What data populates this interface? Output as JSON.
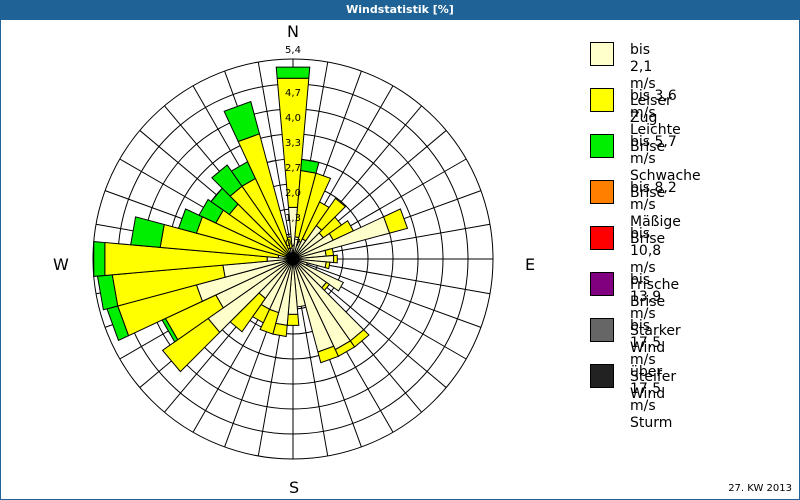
{
  "header": {
    "title": "Windstatistik [%]"
  },
  "compass": {
    "n": "N",
    "e": "E",
    "s": "S",
    "w": "W"
  },
  "footer": {
    "period": "27. KW 2013"
  },
  "legend": [
    {
      "range": "bis 2,1 m/s",
      "name": "Leiser Zug",
      "color": "#ffffcc"
    },
    {
      "range": "bis 3,6 m/s",
      "name": "Leichte Brise",
      "color": "#ffff00"
    },
    {
      "range": "bis 5,7 m/s",
      "name": "Schwache Brise",
      "color": "#00ee00"
    },
    {
      "range": "bis 8,2 m/s",
      "name": "Mäßige Brise",
      "color": "#ff8000"
    },
    {
      "range": "bis 10,8 m/s",
      "name": "Frische Brise",
      "color": "#ff0000"
    },
    {
      "range": "bis 13,9 m/s",
      "name": "Starker Wind",
      "color": "#800080"
    },
    {
      "range": "bis 17,5 m/s",
      "name": "Steifer Wind",
      "color": "#666666"
    },
    {
      "range": "über 17,5 m/s",
      "name": "Sturm",
      "color": "#222222"
    }
  ],
  "chart_data": {
    "type": "wind-rose",
    "title": "Windstatistik [%]",
    "ring_labels": [
      "0,7",
      "1,3",
      "2,0",
      "2,7",
      "3,3",
      "4,0",
      "4,7",
      "5,4"
    ],
    "rmax": 5.4,
    "directions_deg": [
      0,
      10,
      20,
      30,
      40,
      50,
      60,
      70,
      80,
      90,
      100,
      110,
      120,
      130,
      140,
      150,
      160,
      170,
      180,
      190,
      200,
      210,
      220,
      230,
      240,
      250,
      260,
      270,
      280,
      290,
      300,
      310,
      320,
      330,
      340,
      350
    ],
    "series": [
      {
        "name": "bis 2,1 m/s",
        "values": [
          1.4,
          0.6,
          0.5,
          0.6,
          1.1,
          1.0,
          1.2,
          2.7,
          0.9,
          1.1,
          0.9,
          0.4,
          1.5,
          1.1,
          2.7,
          2.7,
          2.6,
          1.3,
          1.5,
          1.8,
          1.5,
          1.5,
          1.3,
          2.8,
          2.3,
          2.7,
          1.9,
          0.7,
          0.4,
          0.2,
          0.2,
          0.2,
          0.2,
          0.2,
          0.3,
          0.3
        ]
      },
      {
        "name": "bis 3,6 m/s",
        "values": [
          3.5,
          1.8,
          1.9,
          1.1,
          0.9,
          0.6,
          0.6,
          0.5,
          0.2,
          0.1,
          0.1,
          0.0,
          0.0,
          0.1,
          0.2,
          0.2,
          0.3,
          0.0,
          0.3,
          0.3,
          0.6,
          0.4,
          1.1,
          1.5,
          1.5,
          2.2,
          3.0,
          4.4,
          3.2,
          2.5,
          2.1,
          1.9,
          2.2,
          2.2,
          3.2,
          0.3
        ]
      },
      {
        "name": "bis 5,7 m/s",
        "values": [
          0.3,
          0.3,
          0.0,
          0.0,
          0.0,
          0.0,
          0.0,
          0.0,
          0.0,
          0.0,
          0.0,
          0.0,
          0.0,
          0.0,
          0.0,
          0.0,
          0.0,
          0.0,
          0.0,
          0.0,
          0.0,
          0.0,
          0.0,
          0.0,
          0.1,
          0.3,
          0.4,
          0.3,
          0.8,
          0.5,
          0.5,
          0.6,
          0.7,
          0.5,
          0.9,
          0.0
        ]
      },
      {
        "name": "bis 8,2 m/s",
        "values": [
          0,
          0,
          0,
          0,
          0,
          0,
          0,
          0,
          0,
          0,
          0,
          0,
          0,
          0,
          0,
          0,
          0,
          0,
          0,
          0,
          0,
          0,
          0,
          0,
          0,
          0,
          0,
          0,
          0,
          0,
          0,
          0,
          0,
          0,
          0,
          0
        ]
      }
    ],
    "grid": true,
    "legend_position": "right"
  }
}
